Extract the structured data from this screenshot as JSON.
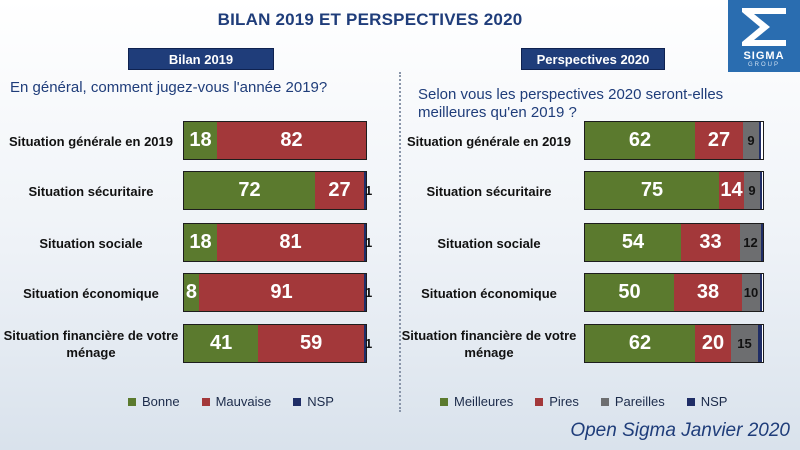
{
  "title": "BILAN 2019 ET PERSPECTIVES 2020",
  "logo": {
    "name": "SIGMA",
    "sub": "GROUP"
  },
  "footer": "Open Sigma Janvier 2020",
  "colors": {
    "green": "#5b7a2e",
    "red": "#a3383a",
    "gray": "#6d6e70",
    "navy": "#1f2d66",
    "title": "#1f3d7a"
  },
  "chart_data": [
    {
      "type": "bar",
      "orientation": "horizontal",
      "stacked": true,
      "tag": "Bilan 2019",
      "question": "En général, comment jugez-vous l'année 2019?",
      "categories": [
        "Situation générale en 2019",
        "Situation sécuritaire",
        "Situation sociale",
        "Situation économique",
        "Situation financière de votre ménage"
      ],
      "series": [
        {
          "name": "Bonne",
          "color": "#5b7a2e",
          "values": [
            18,
            72,
            18,
            8,
            41
          ]
        },
        {
          "name": "Mauvaise",
          "color": "#a3383a",
          "values": [
            82,
            27,
            81,
            91,
            59
          ]
        },
        {
          "name": "NSP",
          "color": "#1f2d66",
          "values": [
            0,
            1,
            1,
            1,
            1
          ]
        }
      ],
      "xlim": [
        0,
        100
      ]
    },
    {
      "type": "bar",
      "orientation": "horizontal",
      "stacked": true,
      "tag": "Perspectives 2020",
      "question": "Selon vous les perspectives 2020 seront-elles meilleures qu'en 2019 ?",
      "categories": [
        "Situation générale en 2019",
        "Situation sécuritaire",
        "Situation sociale",
        "Situation économique",
        "Situation financière de votre ménage"
      ],
      "series": [
        {
          "name": "Meilleures",
          "color": "#5b7a2e",
          "values": [
            62,
            75,
            54,
            50,
            62
          ]
        },
        {
          "name": "Pires",
          "color": "#a3383a",
          "values": [
            27,
            14,
            33,
            38,
            20
          ]
        },
        {
          "name": "Pareilles",
          "color": "#6d6e70",
          "values": [
            9,
            9,
            12,
            10,
            15
          ]
        },
        {
          "name": "NSP",
          "color": "#1f2d66",
          "values": [
            1,
            1,
            1,
            1,
            2
          ]
        }
      ],
      "xlim": [
        0,
        100
      ]
    }
  ]
}
